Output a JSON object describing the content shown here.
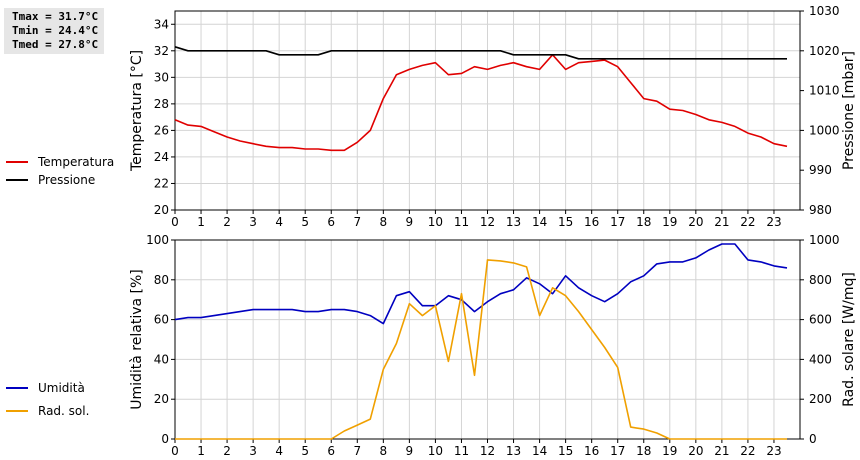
{
  "stats": {
    "tmax": "Tmax = 31.7°C",
    "tmin": "Tmin = 24.4°C",
    "tmed": "Tmed = 27.8°C"
  },
  "legend_top": [
    {
      "label": "Temperatura",
      "color": "#e00000"
    },
    {
      "label": "Pressione",
      "color": "#000000"
    }
  ],
  "legend_bottom": [
    {
      "label": "Umidità",
      "color": "#0000c0"
    },
    {
      "label": "Rad. sol.",
      "color": "#f0a000"
    }
  ],
  "chart_data": [
    {
      "type": "line",
      "xlim": [
        0,
        24
      ],
      "xticks": [
        0,
        1,
        2,
        3,
        4,
        5,
        6,
        7,
        8,
        9,
        10,
        11,
        12,
        13,
        14,
        15,
        16,
        17,
        18,
        19,
        20,
        21,
        22,
        23
      ],
      "ylabel": "Temperatura [°C]",
      "ylim": [
        20,
        35
      ],
      "yticks": [
        20,
        22,
        24,
        26,
        28,
        30,
        32,
        34
      ],
      "ylabel_right": "Pressione [mbar]",
      "ylim_right": [
        980,
        1030
      ],
      "yticks_right": [
        980,
        990,
        1000,
        1010,
        1020,
        1030
      ],
      "grid": true,
      "series": [
        {
          "name": "Temperatura",
          "axis": "left",
          "color": "#e00000",
          "x": [
            0,
            0.5,
            1,
            1.5,
            2,
            2.5,
            3,
            3.5,
            4,
            4.5,
            5,
            5.5,
            6,
            6.5,
            7,
            7.5,
            8,
            8.5,
            9,
            9.5,
            10,
            10.5,
            11,
            11.5,
            12,
            12.5,
            13,
            13.5,
            14,
            14.5,
            15,
            15.5,
            16,
            16.5,
            17,
            17.5,
            18,
            18.5,
            19,
            19.5,
            20,
            20.5,
            21,
            21.5,
            22,
            22.5,
            23,
            23.5
          ],
          "y": [
            26.8,
            26.4,
            26.3,
            25.9,
            25.5,
            25.2,
            25.0,
            24.8,
            24.7,
            24.7,
            24.6,
            24.6,
            24.5,
            24.5,
            25.1,
            26.0,
            28.4,
            30.2,
            30.6,
            30.9,
            31.1,
            30.2,
            30.3,
            30.8,
            30.6,
            30.9,
            31.1,
            30.8,
            30.6,
            31.7,
            30.6,
            31.1,
            31.2,
            31.3,
            30.8,
            29.6,
            28.4,
            28.2,
            27.6,
            27.5,
            27.2,
            26.8,
            26.6,
            26.3,
            25.8,
            25.5,
            25.0,
            24.8
          ]
        },
        {
          "name": "Pressione",
          "axis": "right",
          "color": "#000000",
          "x": [
            0,
            0.5,
            1,
            1.5,
            2,
            2.5,
            3,
            3.5,
            4,
            4.5,
            5,
            5.5,
            6,
            6.5,
            7,
            7.5,
            8,
            8.5,
            9,
            9.5,
            10,
            10.5,
            11,
            11.5,
            12,
            12.5,
            13,
            13.5,
            14,
            14.5,
            15,
            15.5,
            16,
            16.5,
            17,
            17.5,
            18,
            18.5,
            19,
            19.5,
            20,
            20.5,
            21,
            21.5,
            22,
            22.5,
            23,
            23.5
          ],
          "y": [
            1021,
            1020,
            1020,
            1020,
            1020,
            1020,
            1020,
            1020,
            1019,
            1019,
            1019,
            1019,
            1020,
            1020,
            1020,
            1020,
            1020,
            1020,
            1020,
            1020,
            1020,
            1020,
            1020,
            1020,
            1020,
            1020,
            1019,
            1019,
            1019,
            1019,
            1019,
            1018,
            1018,
            1018,
            1018,
            1018,
            1018,
            1018,
            1018,
            1018,
            1018,
            1018,
            1018,
            1018,
            1018,
            1018,
            1018,
            1018
          ]
        }
      ]
    },
    {
      "type": "line",
      "xlim": [
        0,
        24
      ],
      "xticks": [
        0,
        1,
        2,
        3,
        4,
        5,
        6,
        7,
        8,
        9,
        10,
        11,
        12,
        13,
        14,
        15,
        16,
        17,
        18,
        19,
        20,
        21,
        22,
        23
      ],
      "ylabel": "Umidità relativa [%]",
      "ylim": [
        0,
        100
      ],
      "yticks": [
        0,
        20,
        40,
        60,
        80,
        100
      ],
      "ylabel_right": "Rad. solare [W/mq]",
      "ylim_right": [
        0,
        1000
      ],
      "yticks_right": [
        0,
        200,
        400,
        600,
        800,
        1000
      ],
      "grid": true,
      "series": [
        {
          "name": "Umidità",
          "axis": "left",
          "color": "#0000c0",
          "x": [
            0,
            0.5,
            1,
            1.5,
            2,
            2.5,
            3,
            3.5,
            4,
            4.5,
            5,
            5.5,
            6,
            6.5,
            7,
            7.5,
            8,
            8.5,
            9,
            9.5,
            10,
            10.5,
            11,
            11.5,
            12,
            12.5,
            13,
            13.5,
            14,
            14.5,
            15,
            15.5,
            16,
            16.5,
            17,
            17.5,
            18,
            18.5,
            19,
            19.5,
            20,
            20.5,
            21,
            21.5,
            22,
            22.5,
            23,
            23.5
          ],
          "y": [
            60,
            61,
            61,
            62,
            63,
            64,
            65,
            65,
            65,
            65,
            64,
            64,
            65,
            65,
            64,
            62,
            58,
            72,
            74,
            67,
            67,
            72,
            70,
            64,
            69,
            73,
            75,
            81,
            78,
            73,
            82,
            76,
            72,
            69,
            73,
            79,
            82,
            88,
            89,
            89,
            91,
            95,
            98,
            98,
            90,
            89,
            87,
            86
          ]
        },
        {
          "name": "Rad. sol.",
          "axis": "right",
          "color": "#f0a000",
          "x": [
            0,
            0.5,
            1,
            1.5,
            2,
            2.5,
            3,
            3.5,
            4,
            4.5,
            5,
            5.5,
            6,
            6.5,
            7,
            7.5,
            8,
            8.5,
            9,
            9.5,
            10,
            10.5,
            11,
            11.5,
            12,
            12.5,
            13,
            13.5,
            14,
            14.5,
            15,
            15.5,
            16,
            16.5,
            17,
            17.5,
            18,
            18.5,
            19,
            19.5,
            20,
            20.5,
            21,
            21.5,
            22,
            22.5,
            23,
            23.5
          ],
          "y": [
            0,
            0,
            0,
            0,
            0,
            0,
            0,
            0,
            0,
            0,
            0,
            0,
            0,
            40,
            70,
            100,
            350,
            480,
            680,
            620,
            670,
            390,
            730,
            320,
            900,
            895,
            885,
            865,
            620,
            760,
            720,
            640,
            550,
            460,
            360,
            60,
            50,
            30,
            0,
            0,
            0,
            0,
            0,
            0,
            0,
            0,
            0,
            0
          ]
        }
      ]
    }
  ]
}
